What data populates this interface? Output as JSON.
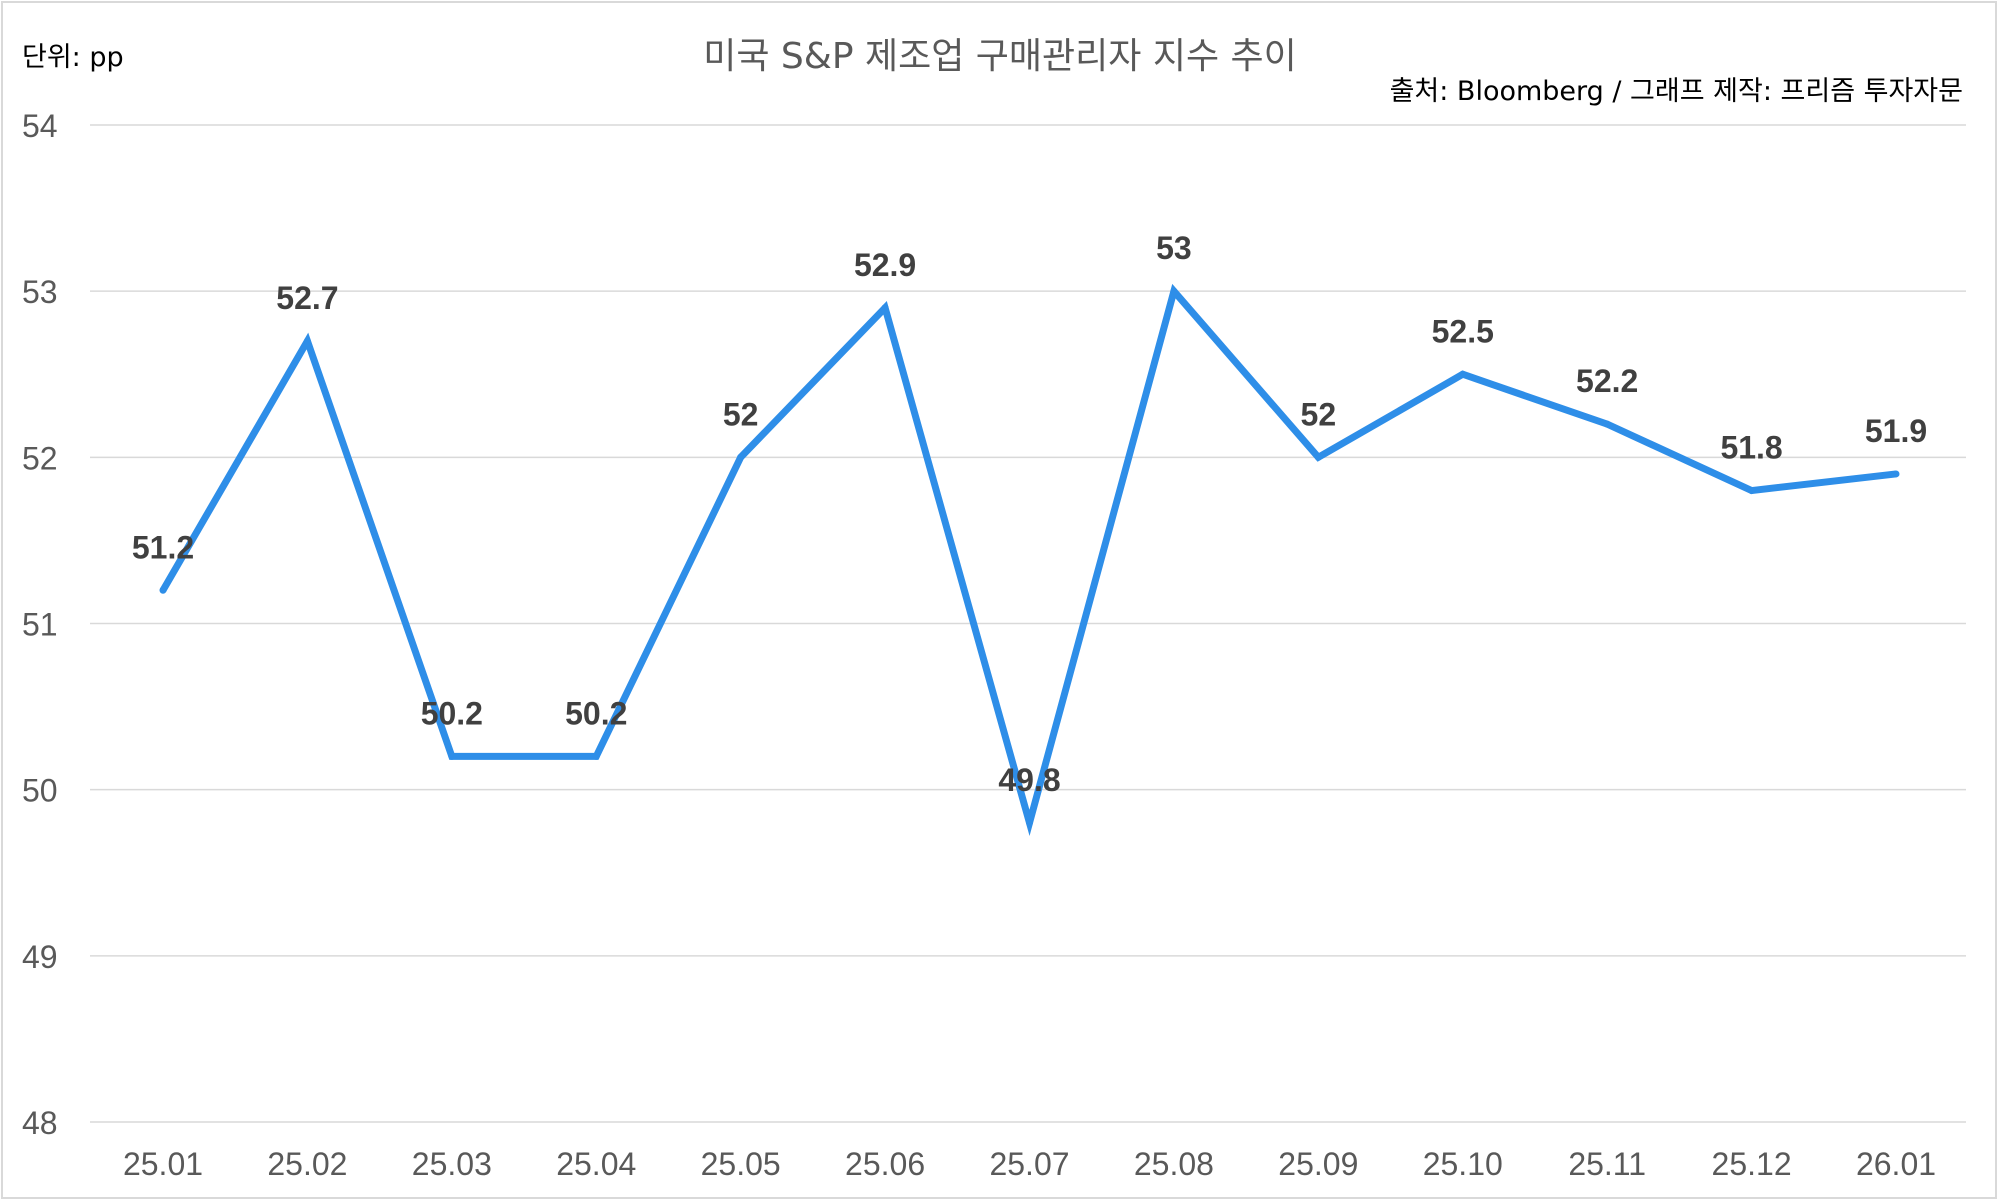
{
  "chart_data": {
    "type": "line",
    "title": "미국 S&P 제조업 구매관리자 지수 추이",
    "unit_label": "단위: pp",
    "source_label": "출처: Bloomberg / 그래프 제작: 프리즘 투자자문",
    "categories": [
      "25.01",
      "25.02",
      "25.03",
      "25.04",
      "25.05",
      "25.06",
      "25.07",
      "25.08",
      "25.09",
      "25.10",
      "25.11",
      "25.12",
      "26.01"
    ],
    "series": [
      {
        "values": [
          51.2,
          52.7,
          50.2,
          50.2,
          52,
          52.9,
          49.8,
          53,
          52,
          52.5,
          52.2,
          51.8,
          51.9
        ],
        "data_labels": [
          "51.2",
          "52.7",
          "50.2",
          "50.2",
          "52",
          "52.9",
          "49.8",
          "53",
          "52",
          "52.5",
          "52.2",
          "51.8",
          "51.9"
        ],
        "color": "#2e8ee8"
      }
    ],
    "ylim": [
      48,
      54
    ],
    "yticks": [
      "48",
      "49",
      "50",
      "51",
      "52",
      "53",
      "54"
    ],
    "xlabel": "",
    "ylabel": "",
    "grid": true,
    "legend": "none"
  }
}
